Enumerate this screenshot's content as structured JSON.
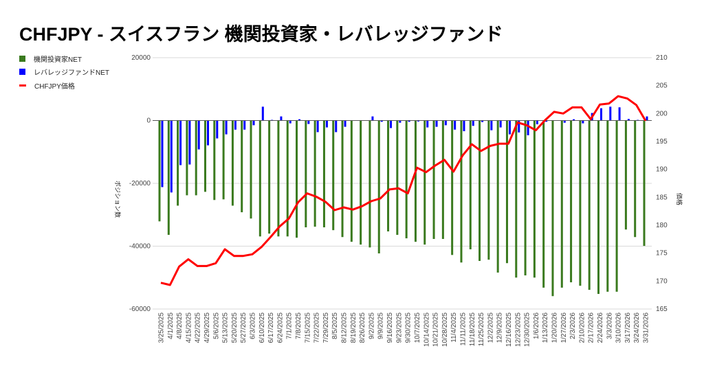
{
  "chart_data": {
    "type": "bar",
    "title": "CHFJPY - スイスフラン 機関投資家・レバレッジファンド",
    "y_left_label": "ポジション数",
    "y_right_label": "価格",
    "y_left_lim": [
      -60000,
      20000
    ],
    "y_left_ticks": [
      "20000",
      "0",
      "-20000",
      "-40000",
      "-60000"
    ],
    "y_right_lim": [
      165,
      210
    ],
    "y_right_ticks": [
      "210",
      "205",
      "200",
      "195",
      "190",
      "185",
      "180",
      "175",
      "170",
      "165"
    ],
    "grid": true,
    "legend_placement": "left",
    "categories": [
      "3/25/2025",
      "4/1/2025",
      "4/8/2025",
      "4/15/2025",
      "4/22/2025",
      "4/29/2025",
      "5/6/2025",
      "5/13/2025",
      "5/20/2025",
      "5/27/2025",
      "6/3/2025",
      "6/10/2025",
      "6/17/2025",
      "6/24/2025",
      "7/1/2025",
      "7/8/2025",
      "7/15/2025",
      "7/22/2025",
      "7/29/2025",
      "8/5/2025",
      "8/12/2025",
      "8/19/2025",
      "8/26/2025",
      "9/2/2025",
      "9/9/2025",
      "9/16/2025",
      "9/23/2025",
      "9/30/2025",
      "10/7/2025",
      "10/14/2025",
      "10/21/2025",
      "10/28/2025",
      "11/4/2025",
      "11/11/2025",
      "11/18/2025",
      "11/25/2025",
      "12/2/2025",
      "12/9/2025",
      "12/16/2025",
      "12/23/2025",
      "12/30/2025",
      "1/6/2026",
      "1/13/2026",
      "1/20/2026",
      "1/27/2026",
      "2/3/2026",
      "2/10/2026",
      "2/17/2026",
      "2/24/2026",
      "3/3/2026",
      "3/10/2026",
      "3/17/2026",
      "3/24/2026",
      "3/31/2026"
    ],
    "series": [
      {
        "name": "機関投資家NET",
        "type": "bar",
        "axis": "left",
        "color": "#3a7a1e",
        "values": [
          -32100,
          -36400,
          -27100,
          -23800,
          -23800,
          -22700,
          -25300,
          -25100,
          -27100,
          -29200,
          -31200,
          -36900,
          -36000,
          -36900,
          -36900,
          -37300,
          -34000,
          -33800,
          -34000,
          -34900,
          -37100,
          -38600,
          -39500,
          -40400,
          -42300,
          -35300,
          -36400,
          -37500,
          -38600,
          -39500,
          -37700,
          -37700,
          -42800,
          -45200,
          -41000,
          -44700,
          -44300,
          -48400,
          -45400,
          -50000,
          -49300,
          -50000,
          -53200,
          -55900,
          -53200,
          -51500,
          -52600,
          -53900,
          -55200,
          -54500,
          -54500,
          -34700,
          -37100,
          -39900
        ]
      },
      {
        "name": "レバレッジファンドNET",
        "type": "bar",
        "axis": "left",
        "color": "#0000ff",
        "values": [
          -21200,
          -22900,
          -14200,
          -14000,
          -9200,
          -7900,
          -5700,
          -4400,
          -2900,
          -2900,
          -1500,
          4400,
          200,
          1300,
          -900,
          400,
          -1100,
          -3700,
          -2200,
          -3700,
          -2000,
          -100,
          0,
          1300,
          -400,
          -2400,
          -700,
          -400,
          -300,
          -2200,
          -2000,
          -1500,
          -2900,
          -3400,
          -1700,
          -500,
          -3100,
          -2200,
          -4400,
          -3800,
          -4700,
          -1200,
          -400,
          0,
          -700,
          400,
          -900,
          2400,
          3900,
          4400,
          4200,
          500,
          200,
          1300
        ]
      },
      {
        "name": "CHFJPY価格",
        "type": "line",
        "axis": "right",
        "color": "#ff0000",
        "values": [
          169.7,
          169.3,
          172.6,
          173.9,
          172.7,
          172.7,
          173.2,
          175.7,
          174.5,
          174.5,
          174.8,
          176.1,
          177.9,
          179.8,
          181.2,
          184.1,
          185.7,
          185.1,
          184.2,
          182.7,
          183.2,
          182.8,
          183.4,
          184.3,
          184.8,
          186.4,
          186.6,
          185.7,
          190.3,
          189.5,
          190.7,
          191.7,
          189.6,
          192.5,
          194.5,
          193.3,
          194.2,
          194.6,
          194.6,
          198.4,
          197.9,
          197.0,
          198.8,
          200.3,
          200.0,
          201.1,
          201.1,
          199.0,
          201.6,
          201.8,
          203.1,
          202.7,
          201.5,
          198.7
        ]
      }
    ]
  }
}
